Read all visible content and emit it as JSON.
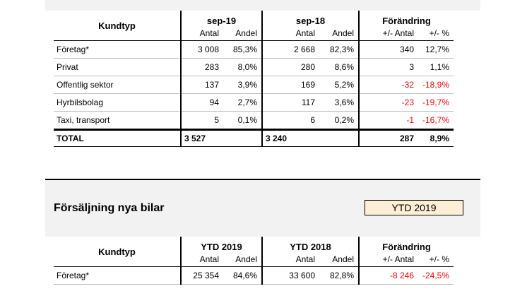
{
  "table1": {
    "kundtyp_label": "Kundtyp",
    "periods": [
      "sep-19",
      "sep-18"
    ],
    "change_label": "Förändring",
    "sub": {
      "antal": "Antal",
      "andel": "Andel",
      "pm_antal": "+/- Antal",
      "pm_pct": "+/- %"
    },
    "rows": [
      {
        "name": "Företag*",
        "a1": "3 008",
        "s1": "85,3%",
        "a2": "2 668",
        "s2": "82,3%",
        "d": "340",
        "p": "12,7%",
        "neg": false
      },
      {
        "name": "Privat",
        "a1": "283",
        "s1": "8,0%",
        "a2": "280",
        "s2": "8,6%",
        "d": "3",
        "p": "1,1%",
        "neg": false
      },
      {
        "name": "Offentlig sektor",
        "a1": "137",
        "s1": "3,9%",
        "a2": "169",
        "s2": "5,2%",
        "d": "-32",
        "p": "-18,9%",
        "neg": true
      },
      {
        "name": "Hyrbilsbolag",
        "a1": "94",
        "s1": "2,7%",
        "a2": "117",
        "s2": "3,6%",
        "d": "-23",
        "p": "-19,7%",
        "neg": true
      },
      {
        "name": "Taxi, transport",
        "a1": "5",
        "s1": "0,1%",
        "a2": "6",
        "s2": "0,2%",
        "d": "-1",
        "p": "-16,7%",
        "neg": true
      }
    ],
    "total": {
      "name": "TOTAL",
      "a1": "3 527",
      "a2": "3 240",
      "d": "287",
      "p": "8,9%"
    }
  },
  "section2": {
    "title": "Försäljning nya bilar",
    "ytd_box": "YTD 2019"
  },
  "table2": {
    "kundtyp_label": "Kundtyp",
    "periods": [
      "YTD 2019",
      "YTD 2018"
    ],
    "change_label": "Förändring",
    "sub": {
      "antal": "Antal",
      "andel": "Andel",
      "pm_antal": "+/- Antal",
      "pm_pct": "+/- %"
    },
    "rows": [
      {
        "name": "Företag*",
        "a1": "25 354",
        "s1": "84,6%",
        "a2": "33 600",
        "s2": "82,8%",
        "d": "-8 246",
        "p": "-24,5%",
        "neg": true
      }
    ]
  },
  "colors": {
    "negative": "#ff0000",
    "panel": "#f2f2f2",
    "ytd_box": "#fcefd6"
  }
}
